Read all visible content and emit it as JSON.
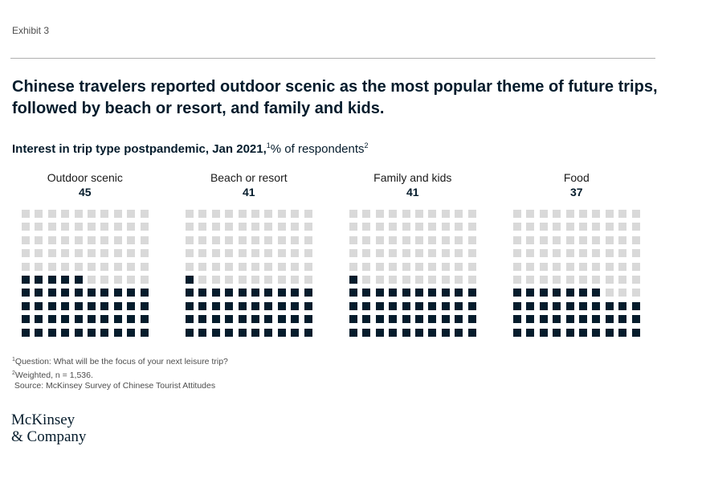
{
  "exhibit_label": "Exhibit 3",
  "title": "Chinese travelers reported outdoor scenic as the most popular theme of future trips, followed by beach or resort, and family and kids.",
  "subtitle": {
    "bold": "Interest in trip type postpandemic, Jan 2021,",
    "sup1": "1",
    "rest": "% of respondents",
    "sup2": "2"
  },
  "colors": {
    "filled": "#051c2c",
    "empty": "#d9d9d9",
    "text": "#051c2c"
  },
  "chart_data": {
    "type": "waffle",
    "grid": {
      "rows": 10,
      "columns": 10,
      "total": 100
    },
    "categories": [
      "Outdoor scenic",
      "Beach or resort",
      "Family and kids",
      "Food"
    ],
    "values": [
      45,
      41,
      41,
      37
    ],
    "unit": "% of respondents"
  },
  "footnotes": {
    "note1_sup": "1",
    "note1": "Question: What will be the focus of your next leisure trip?",
    "note2_sup": "2",
    "note2": "Weighted, n = 1,536.",
    "source": "Source: McKinsey Survey of Chinese Tourist Attitudes"
  },
  "logo": {
    "line1": "McKinsey",
    "line2": "& Company"
  }
}
